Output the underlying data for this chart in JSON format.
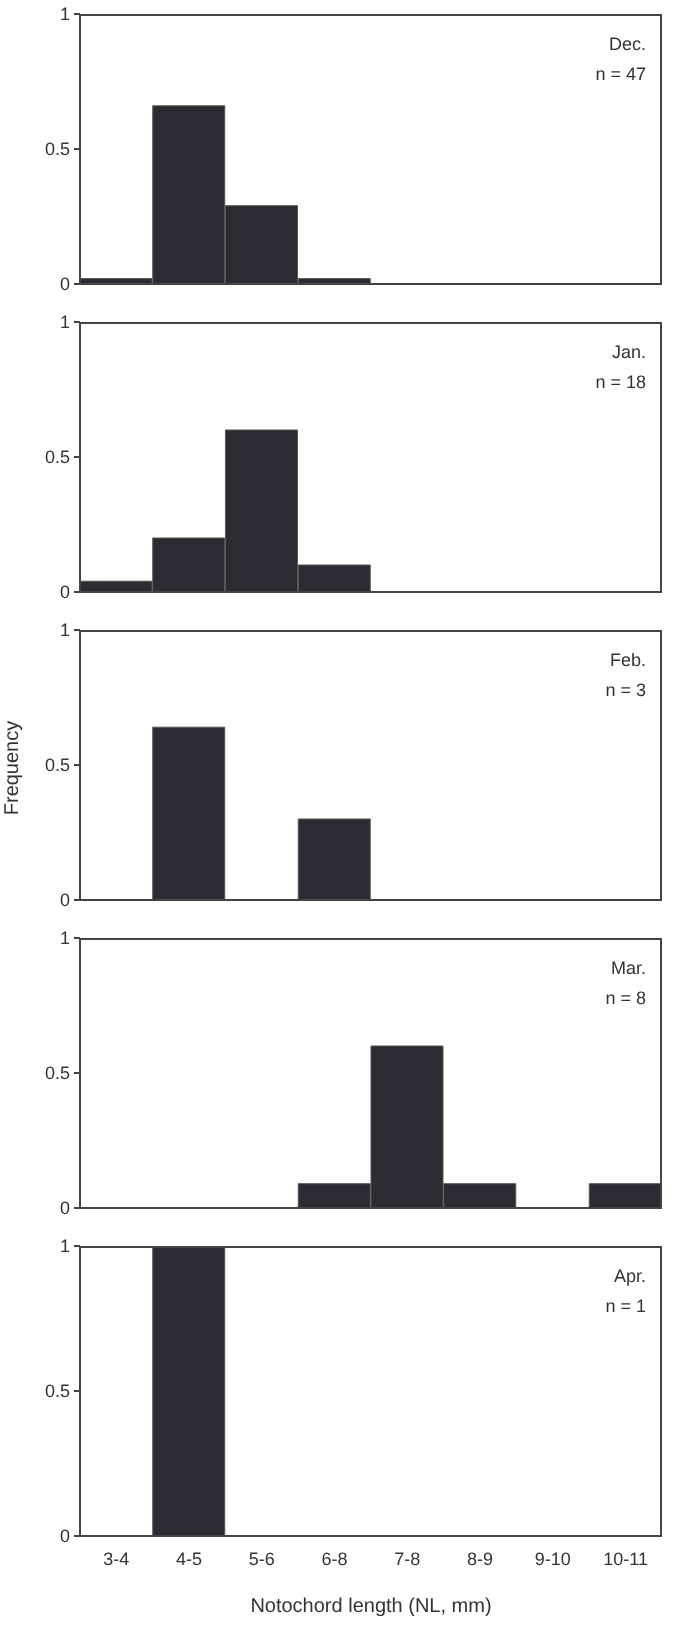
{
  "chart_data": [
    {
      "type": "bar",
      "categories": [
        null,
        null,
        null,
        null,
        null,
        null,
        null,
        null
      ],
      "values": [
        0.02,
        0.66,
        0.29,
        0.02,
        0,
        0,
        0,
        0
      ],
      "color": "#2b2c33",
      "ylim": [
        0,
        1
      ],
      "yticks": [
        0,
        0.5,
        1
      ],
      "grid": false,
      "legend": false,
      "tick_labels": "y",
      "annotations": [
        "Dec.",
        "n = 47"
      ]
    },
    {
      "type": "bar",
      "categories": [
        null,
        null,
        null,
        null,
        null,
        null,
        null,
        null
      ],
      "values": [
        0.04,
        0.2,
        0.6,
        0.1,
        0,
        0,
        0,
        0
      ],
      "color": "#2b2c33",
      "ylim": [
        0,
        1
      ],
      "yticks": [
        0,
        0.5,
        1
      ],
      "grid": false,
      "legend": false,
      "tick_labels": "y",
      "annotations": [
        "Jan.",
        "n = 18"
      ]
    },
    {
      "type": "bar",
      "categories": [
        null,
        null,
        null,
        null,
        null,
        null,
        null,
        null
      ],
      "values": [
        0,
        0.64,
        0,
        0.3,
        0,
        0,
        0,
        0
      ],
      "color": "#2b2c33",
      "ylim": [
        0,
        1
      ],
      "yticks": [
        0,
        0.5,
        1
      ],
      "grid": false,
      "legend": false,
      "tick_labels": "y",
      "ylabel": "Frequency",
      "annotations": [
        "Feb.",
        "n = 3"
      ]
    },
    {
      "type": "bar",
      "categories": [
        null,
        null,
        null,
        null,
        null,
        null,
        null,
        null
      ],
      "values": [
        0,
        0,
        0,
        0.09,
        0.6,
        0.09,
        0,
        0.09
      ],
      "color": "#2b2c33",
      "ylim": [
        0,
        1
      ],
      "yticks": [
        0,
        0.5,
        1
      ],
      "grid": false,
      "legend": false,
      "tick_labels": "y",
      "annotations": [
        "Mar.",
        "n = 8"
      ]
    },
    {
      "type": "bar",
      "categories": [
        "3-4",
        "4-5",
        "5-6",
        "6-8",
        "7-8",
        "8-9",
        "9-10",
        "10-11"
      ],
      "values": [
        0,
        1,
        0,
        0,
        0,
        0,
        0,
        0
      ],
      "color": "#2b2c33",
      "ylim": [
        0,
        1
      ],
      "yticks": [
        0,
        0.5,
        1
      ],
      "grid": false,
      "legend": false,
      "xlabel": "Notochord length (NL, mm)",
      "annotations": [
        "Apr.",
        "n = 1"
      ]
    }
  ]
}
